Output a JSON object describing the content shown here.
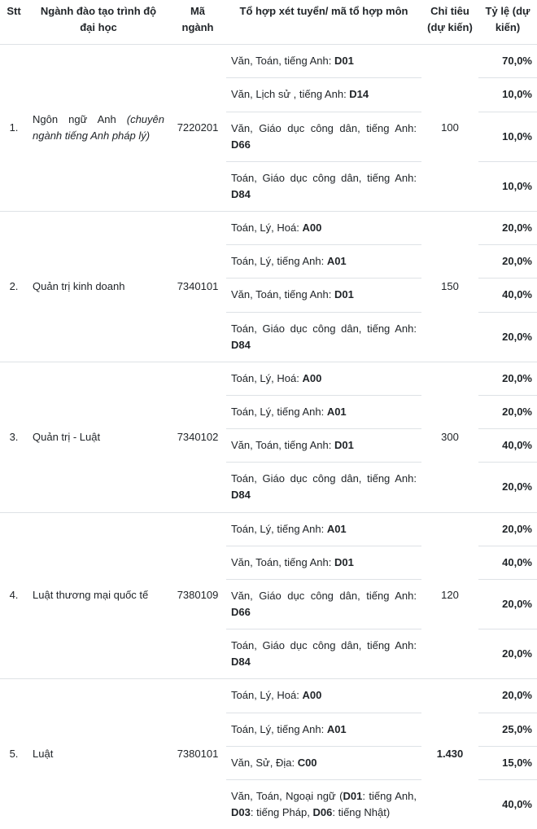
{
  "headers": {
    "stt": "Stt",
    "major": "Ngành đào tạo trình độ đại học",
    "code": "Mã ngành",
    "combo": "Tổ hợp xét tuyển/ mã tổ hợp môn",
    "quota": "Chỉ tiêu (dự kiến)",
    "ratio": "Tỷ lệ (dự kiến)"
  },
  "rows": [
    {
      "stt": "1.",
      "major_prefix": "Ngôn ngữ Anh ",
      "major_italic": "(chuyên ngành tiếng Anh pháp lý)",
      "code": "7220201",
      "quota": "100",
      "combos": [
        {
          "text": "Văn, Toán, tiếng Anh: ",
          "bold": "D01",
          "ratio": "70,0%"
        },
        {
          "text": "Văn, Lịch sử , tiếng Anh: ",
          "bold": "D14",
          "ratio": "10,0%"
        },
        {
          "text": "Văn, Giáo dục công dân, tiếng Anh: ",
          "bold": "D66",
          "ratio": "10,0%"
        },
        {
          "text": "Toán, Giáo dục công dân, tiếng Anh: ",
          "bold": "D84",
          "ratio": "10,0%"
        }
      ]
    },
    {
      "stt": "2.",
      "major_prefix": "Quản trị kinh doanh",
      "major_italic": "",
      "code": "7340101",
      "quota": "150",
      "combos": [
        {
          "text": "Toán, Lý, Hoá: ",
          "bold": "A00",
          "ratio": "20,0%"
        },
        {
          "text": "Toán, Lý, tiếng Anh: ",
          "bold": "A01",
          "ratio": "20,0%"
        },
        {
          "text": "Văn, Toán, tiếng Anh: ",
          "bold": "D01",
          "ratio": "40,0%"
        },
        {
          "text": "Toán, Giáo dục công dân, tiếng Anh: ",
          "bold": "D84",
          "ratio": "20,0%"
        }
      ]
    },
    {
      "stt": "3.",
      "major_prefix": "Quản trị - Luật",
      "major_italic": "",
      "code": "7340102",
      "quota": "300",
      "combos": [
        {
          "text": "Toán, Lý, Hoá: ",
          "bold": "A00",
          "ratio": "20,0%"
        },
        {
          "text": "Toán, Lý, tiếng Anh: ",
          "bold": "A01",
          "ratio": "20,0%"
        },
        {
          "text": "Văn, Toán, tiếng Anh: ",
          "bold": "D01",
          "ratio": "40,0%"
        },
        {
          "text": "Toán, Giáo dục công dân, tiếng Anh: ",
          "bold": "D84",
          "ratio": "20,0%"
        }
      ]
    },
    {
      "stt": "4.",
      "major_prefix": "Luật thương mại quốc tế",
      "major_italic": "",
      "code": "7380109",
      "quota": "120",
      "combos": [
        {
          "text": "Toán, Lý, tiếng Anh: ",
          "bold": "A01",
          "ratio": "20,0%"
        },
        {
          "text": "Văn, Toán, tiếng Anh: ",
          "bold": "D01",
          "ratio": "40,0%"
        },
        {
          "text": "Văn, Giáo dục công dân, tiếng Anh: ",
          "bold": "D66",
          "ratio": "20,0%"
        },
        {
          "text": "Toán, Giáo dục công dân, tiếng Anh: ",
          "bold": "D84",
          "ratio": "20,0%"
        }
      ]
    },
    {
      "stt": "5.",
      "major_prefix": "Luật",
      "major_italic": "",
      "code": "7380101",
      "quota": "1.430",
      "quota_bold": true,
      "combos": [
        {
          "text": "Toán, Lý, Hoá: ",
          "bold": "A00",
          "ratio": "20,0%"
        },
        {
          "text": "Toán, Lý, tiếng Anh: ",
          "bold": "A01",
          "ratio": "25,0%"
        },
        {
          "text": "Văn, Sử, Địa: ",
          "bold": "C00",
          "ratio": "15,0%"
        },
        {
          "html_parts": [
            {
              "t": "Văn, Toán, Ngoại ngữ ("
            },
            {
              "b": "D01"
            },
            {
              "t": ": tiếng Anh, "
            },
            {
              "b": "D03"
            },
            {
              "t": ": tiếng Pháp, "
            },
            {
              "b": "D06"
            },
            {
              "t": ": tiếng Nhật)"
            }
          ],
          "ratio": "40,0%",
          "truncated": true
        }
      ]
    }
  ],
  "colors": {
    "border": "#dee2e6",
    "text": "#212529"
  }
}
